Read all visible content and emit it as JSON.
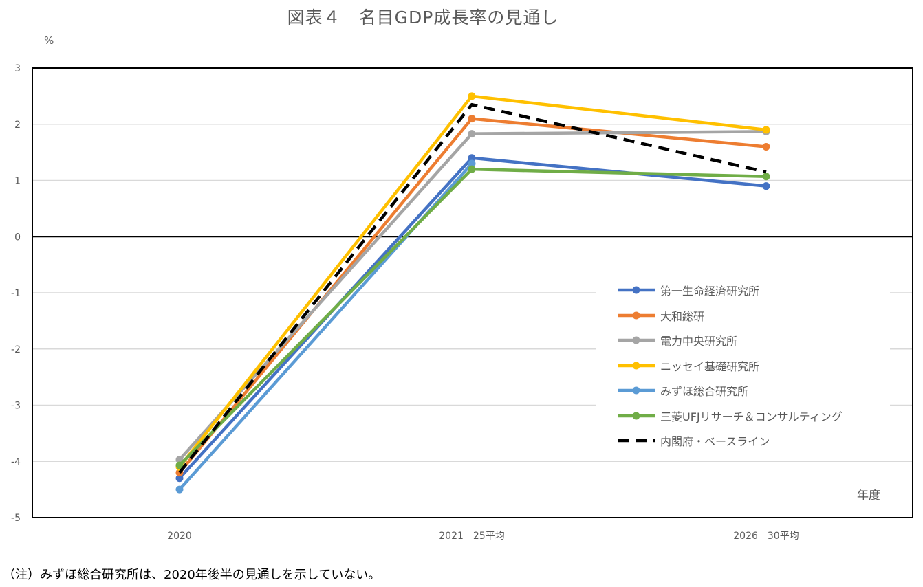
{
  "title": "図表４　名目GDP成長率の見通し",
  "unit_label": "%",
  "x_axis_title": "年度",
  "note": "（注）みずほ総合研究所は、2020年後半の見通しを示していない。",
  "chart_data": {
    "type": "line",
    "title": "図表４　名目GDP成長率の見通し",
    "xlabel": "年度",
    "ylabel": "%",
    "categories": [
      "2020",
      "2021－25平均",
      "2026－30平均"
    ],
    "ylim": [
      -5,
      3
    ],
    "yticks": [
      3,
      2,
      1,
      0,
      -1,
      -2,
      -3,
      -4,
      -5
    ],
    "grid": true,
    "legend_position": "lower-right",
    "series": [
      {
        "name": "第一生命経済研究所",
        "values": [
          -4.3,
          1.4,
          0.9
        ],
        "color": "#4472C4",
        "dashed": false
      },
      {
        "name": "大和総研",
        "values": [
          -4.2,
          2.1,
          1.6
        ],
        "color": "#ED7D31",
        "dashed": false
      },
      {
        "name": "電力中央研究所",
        "values": [
          -3.97,
          1.83,
          1.87
        ],
        "color": "#A5A5A5",
        "dashed": false
      },
      {
        "name": "ニッセイ基礎研究所",
        "values": [
          -4.1,
          2.5,
          1.9
        ],
        "color": "#FFC000",
        "dashed": false
      },
      {
        "name": "みずほ総合研究所",
        "values": [
          -4.5,
          1.3,
          null
        ],
        "color": "#5B9BD5",
        "dashed": false
      },
      {
        "name": "三菱UFJリサーチ＆コンサルティング",
        "values": [
          -4.07,
          1.2,
          1.07
        ],
        "color": "#70AD47",
        "dashed": false
      },
      {
        "name": "内閣府・ベースライン",
        "values": [
          -4.2,
          2.35,
          1.15
        ],
        "color": "#000000",
        "dashed": true
      }
    ]
  }
}
